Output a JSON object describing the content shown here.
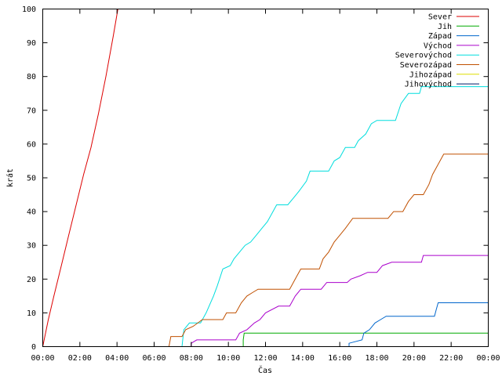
{
  "chart_data": {
    "type": "line",
    "xlabel": "Čas",
    "ylabel": "krát",
    "xlim": [
      0,
      24
    ],
    "ylim": [
      0,
      100
    ],
    "x_ticks": [
      0,
      2,
      4,
      6,
      8,
      10,
      12,
      14,
      16,
      18,
      20,
      22,
      24
    ],
    "x_tick_labels": [
      "00:00",
      "02:00",
      "04:00",
      "06:00",
      "08:00",
      "10:00",
      "12:00",
      "14:00",
      "16:00",
      "18:00",
      "20:00",
      "22:00",
      "00:00"
    ],
    "y_ticks": [
      0,
      10,
      20,
      30,
      40,
      50,
      60,
      70,
      80,
      90,
      100
    ],
    "grid": false,
    "legend_position": "top-right",
    "series": [
      {
        "name": "Sever",
        "color": "#dd0000",
        "points": [
          [
            0,
            0
          ],
          [
            0.3,
            8
          ],
          [
            0.6,
            15
          ],
          [
            1.0,
            24
          ],
          [
            1.4,
            33
          ],
          [
            1.8,
            42
          ],
          [
            2.2,
            51
          ],
          [
            2.6,
            59
          ],
          [
            3.0,
            69
          ],
          [
            3.4,
            80
          ],
          [
            3.8,
            92
          ],
          [
            4.05,
            100
          ]
        ]
      },
      {
        "name": "Jih",
        "color": "#00aa00",
        "points": [
          [
            10.8,
            0
          ],
          [
            10.8,
            2
          ],
          [
            10.85,
            4
          ],
          [
            24,
            4
          ]
        ]
      },
      {
        "name": "Západ",
        "color": "#0066cc",
        "points": [
          [
            16.5,
            0
          ],
          [
            16.5,
            1
          ],
          [
            17.2,
            2
          ],
          [
            17.3,
            4
          ],
          [
            17.6,
            5
          ],
          [
            17.9,
            7
          ],
          [
            18.2,
            8
          ],
          [
            18.5,
            9
          ],
          [
            21.1,
            9
          ],
          [
            21.2,
            11
          ],
          [
            21.3,
            13
          ],
          [
            24,
            13
          ]
        ]
      },
      {
        "name": "Východ",
        "color": "#aa00cc",
        "points": [
          [
            8.0,
            0
          ],
          [
            8.0,
            1
          ],
          [
            8.3,
            2
          ],
          [
            10.4,
            2
          ],
          [
            10.6,
            4
          ],
          [
            11.0,
            5
          ],
          [
            11.4,
            7
          ],
          [
            11.7,
            8
          ],
          [
            12.0,
            10
          ],
          [
            12.7,
            12
          ],
          [
            13.3,
            12
          ],
          [
            13.6,
            15
          ],
          [
            13.9,
            17
          ],
          [
            15.0,
            17
          ],
          [
            15.3,
            19
          ],
          [
            16.4,
            19
          ],
          [
            16.6,
            20
          ],
          [
            17.1,
            21
          ],
          [
            17.5,
            22
          ],
          [
            18.0,
            22
          ],
          [
            18.3,
            24
          ],
          [
            18.8,
            25
          ],
          [
            20.4,
            25
          ],
          [
            20.5,
            27
          ],
          [
            24,
            27
          ]
        ]
      },
      {
        "name": "Severovýchod",
        "color": "#00dddd",
        "points": [
          [
            7.5,
            0
          ],
          [
            7.6,
            5
          ],
          [
            7.9,
            7
          ],
          [
            8.5,
            7
          ],
          [
            8.8,
            10
          ],
          [
            9.2,
            15
          ],
          [
            9.4,
            18
          ],
          [
            9.7,
            23
          ],
          [
            10.1,
            24
          ],
          [
            10.3,
            26
          ],
          [
            10.6,
            28
          ],
          [
            10.9,
            30
          ],
          [
            11.2,
            31
          ],
          [
            11.5,
            33
          ],
          [
            11.8,
            35
          ],
          [
            12.1,
            37
          ],
          [
            12.4,
            40
          ],
          [
            12.6,
            42
          ],
          [
            13.2,
            42
          ],
          [
            13.5,
            44
          ],
          [
            13.8,
            46
          ],
          [
            14.2,
            49
          ],
          [
            14.4,
            52
          ],
          [
            15.4,
            52
          ],
          [
            15.7,
            55
          ],
          [
            16.0,
            56
          ],
          [
            16.3,
            59
          ],
          [
            16.8,
            59
          ],
          [
            17.0,
            61
          ],
          [
            17.4,
            63
          ],
          [
            17.7,
            66
          ],
          [
            18.0,
            67
          ],
          [
            19.0,
            67
          ],
          [
            19.3,
            72
          ],
          [
            19.7,
            75
          ],
          [
            20.3,
            75
          ],
          [
            20.4,
            77
          ],
          [
            24,
            77
          ]
        ]
      },
      {
        "name": "Severozápad",
        "color": "#c05000",
        "points": [
          [
            6.8,
            0
          ],
          [
            6.9,
            3
          ],
          [
            7.5,
            3
          ],
          [
            7.7,
            5
          ],
          [
            8.1,
            6
          ],
          [
            8.6,
            8
          ],
          [
            9.7,
            8
          ],
          [
            9.9,
            10
          ],
          [
            10.4,
            10
          ],
          [
            10.7,
            13
          ],
          [
            11.0,
            15
          ],
          [
            11.3,
            16
          ],
          [
            11.6,
            17
          ],
          [
            13.3,
            17
          ],
          [
            13.5,
            19
          ],
          [
            13.7,
            21
          ],
          [
            13.9,
            23
          ],
          [
            14.9,
            23
          ],
          [
            15.1,
            26
          ],
          [
            15.4,
            28
          ],
          [
            15.7,
            31
          ],
          [
            16.0,
            33
          ],
          [
            16.3,
            35
          ],
          [
            16.7,
            38
          ],
          [
            18.6,
            38
          ],
          [
            18.9,
            40
          ],
          [
            19.4,
            40
          ],
          [
            19.7,
            43
          ],
          [
            20.0,
            45
          ],
          [
            20.5,
            45
          ],
          [
            20.8,
            48
          ],
          [
            21.0,
            51
          ],
          [
            21.3,
            54
          ],
          [
            21.6,
            57
          ],
          [
            24,
            57
          ]
        ]
      },
      {
        "name": "Jihozápad",
        "color": "#dddd00",
        "points": []
      },
      {
        "name": "Jihovýchod",
        "color": "#001a66",
        "points": []
      }
    ]
  }
}
